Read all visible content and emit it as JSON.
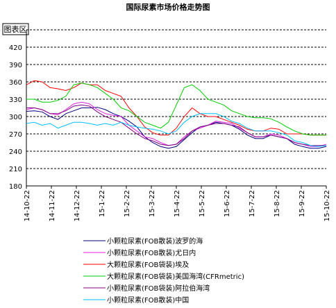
{
  "chart_data": {
    "type": "line",
    "title": "国际尿素市场价格走势图",
    "plot_area_label": "图表区",
    "ylim": [
      180,
      450
    ],
    "yticks": [
      180,
      210,
      240,
      270,
      300,
      330,
      360,
      390,
      420
    ],
    "grid": "horizontal-dashed",
    "legend_position": "bottom",
    "x_tick_labels": [
      "14-10-22",
      "14-11-22",
      "14-12-22",
      "15-1-22",
      "15-2-22",
      "15-3-22",
      "15-4-22",
      "15-5-22",
      "15-6-22",
      "15-7-22",
      "15-8-22",
      "15-9-22",
      "15-10-22"
    ],
    "series": [
      {
        "name": "小颗粒尿素(FOB散装)波罗的海",
        "color": "#000080",
        "values": [
          309,
          310,
          308,
          300,
          295,
          305,
          310,
          315,
          315,
          316,
          312,
          305,
          300,
          292,
          282,
          265,
          255,
          248,
          245,
          248,
          260,
          272,
          282,
          285,
          290,
          288,
          285,
          278,
          268,
          262,
          262,
          268,
          265,
          262,
          252,
          248,
          245,
          245,
          248
        ]
      },
      {
        "name": "小颗粒尿素(FOB散装)尤日内",
        "color": "#e020e0",
        "values": [
          312,
          315,
          312,
          305,
          303,
          312,
          322,
          325,
          322,
          312,
          305,
          302,
          300,
          285,
          275,
          265,
          262,
          255,
          250,
          252,
          265,
          275,
          280,
          285,
          292,
          290,
          288,
          280,
          272,
          265,
          265,
          270,
          268,
          262,
          255,
          252,
          248,
          248,
          252
        ]
      },
      {
        "name": "大颗粒尿素(FOB袋装)埃及",
        "color": "#ff0000",
        "values": [
          355,
          362,
          360,
          350,
          348,
          345,
          350,
          358,
          355,
          355,
          345,
          340,
          335,
          315,
          300,
          282,
          272,
          268,
          268,
          280,
          300,
          315,
          305,
          300,
          300,
          295,
          290,
          285,
          278,
          275,
          275,
          280,
          278,
          270,
          270,
          270,
          268,
          268,
          268
        ]
      },
      {
        "name": "大颗粒尿素(FOB袋装)美国海湾(CFRmetric)",
        "color": "#00cc00",
        "values": [
          330,
          330,
          325,
          325,
          328,
          335,
          355,
          358,
          355,
          350,
          340,
          330,
          315,
          310,
          300,
          290,
          285,
          280,
          290,
          320,
          350,
          355,
          345,
          330,
          325,
          320,
          310,
          305,
          300,
          298,
          298,
          296,
          290,
          282,
          275,
          270,
          268,
          268,
          268
        ]
      },
      {
        "name": "小颗粒尿素(FOB袋装)阿拉伯海湾",
        "color": "#800080",
        "values": [
          315,
          315,
          312,
          305,
          305,
          310,
          318,
          320,
          318,
          308,
          300,
          295,
          290,
          280,
          270,
          262,
          258,
          252,
          250,
          252,
          262,
          275,
          282,
          285,
          288,
          288,
          285,
          282,
          272,
          265,
          265,
          268,
          265,
          262,
          255,
          252,
          250,
          250,
          250
        ]
      },
      {
        "name": "小颗粒尿素(FOB散装)中国",
        "color": "#00bfff",
        "values": [
          288,
          290,
          285,
          288,
          280,
          285,
          290,
          290,
          288,
          285,
          288,
          285,
          290,
          285,
          282,
          280,
          278,
          275,
          270,
          275,
          290,
          300,
          305,
          305,
          305,
          300,
          292,
          288,
          280,
          275,
          275,
          275,
          272,
          268,
          258,
          255,
          250,
          248,
          250
        ]
      }
    ]
  }
}
